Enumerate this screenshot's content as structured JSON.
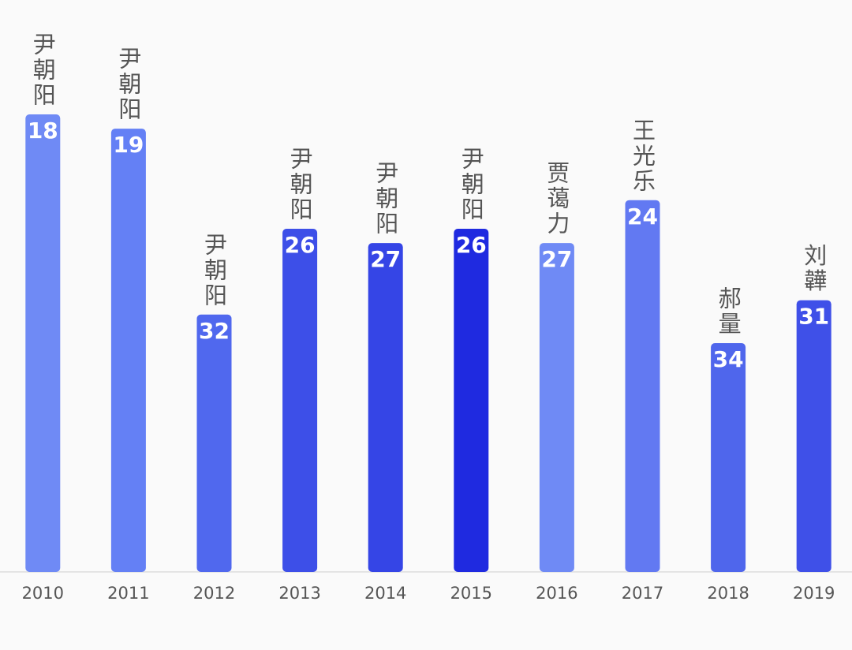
{
  "chart_data": {
    "type": "bar",
    "categories": [
      "2010",
      "2011",
      "2012",
      "2013",
      "2014",
      "2015",
      "2016",
      "2017",
      "2018",
      "2019"
    ],
    "values": [
      18,
      19,
      32,
      26,
      27,
      26,
      27,
      24,
      34,
      31
    ],
    "annotations": [
      "尹朝阳",
      "尹朝阳",
      "尹朝阳",
      "尹朝阳",
      "尹朝阳",
      "尹朝阳",
      "贾蔼力",
      "王光乐",
      "郝量",
      "刘韡"
    ],
    "colors": [
      "#6f8af5",
      "#6480f5",
      "#5068ee",
      "#3d4fe8",
      "#3545e6",
      "#1f2ae0",
      "#6f8af5",
      "#6279f2",
      "#4f66ec",
      "#3f50e8"
    ],
    "ylim": [
      50,
      10
    ]
  }
}
